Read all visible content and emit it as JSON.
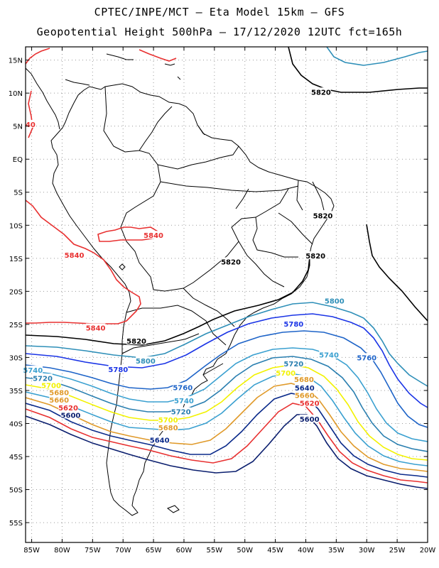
{
  "header": {
    "line1": "CPTEC/INPE/MCT –  Eta Model 15km – GFS",
    "line2": "Geopotential Height 500hPa – 17/12/2020 12UTC fct=165h"
  },
  "map": {
    "lat_labels": [
      "15N",
      "10N",
      "5N",
      "EQ",
      "5S",
      "10S",
      "15S",
      "20S",
      "25S",
      "30S",
      "35S",
      "40S",
      "45S",
      "50S",
      "55S"
    ],
    "lon_labels": [
      "85W",
      "80W",
      "75W",
      "70W",
      "65W",
      "60W",
      "55W",
      "50W",
      "45W",
      "40W",
      "35W",
      "30W",
      "25W",
      "20W"
    ],
    "lon_range": [
      -86,
      -20
    ],
    "lat_range": [
      -58,
      17
    ],
    "contour_colors": {
      "5840": "#e83030",
      "5820": "#000000",
      "5800": "#2e8fb8",
      "5780": "#1a34e6",
      "5760": "#1e64c8",
      "5740": "#3aa0d0",
      "5720": "#2a7fb0",
      "5700": "#f2f200",
      "5680": "#e09a2a",
      "5660": "#e09a2a",
      "5640": "#0a2a8a",
      "5620": "#e83030",
      "5600": "#0a1e6e"
    },
    "contour_labels": [
      {
        "text": "5820",
        "lon": -37.5,
        "lat": 10.2
      },
      {
        "text": "5820",
        "lon": -37.2,
        "lat": -8.5
      },
      {
        "text": "5820",
        "lon": -38.4,
        "lat": -14.6
      },
      {
        "text": "5820",
        "lon": -52.3,
        "lat": -15.5
      },
      {
        "text": "5820",
        "lon": -67.8,
        "lat": -27.5
      },
      {
        "text": "5840",
        "lon": -65.0,
        "lat": -11.5
      },
      {
        "text": "5840",
        "lon": -78.0,
        "lat": -14.5
      },
      {
        "text": "5840",
        "lon": -74.5,
        "lat": -25.5
      },
      {
        "text": "40",
        "lon": -85.2,
        "lat": 5.3
      },
      {
        "text": "5800",
        "lon": -35.3,
        "lat": -21.4
      },
      {
        "text": "5800",
        "lon": -66.3,
        "lat": -30.5
      },
      {
        "text": "5780",
        "lon": -42.0,
        "lat": -24.9
      },
      {
        "text": "5780",
        "lon": -70.8,
        "lat": -31.8
      },
      {
        "text": "5760",
        "lon": -30.0,
        "lat": -30.0
      },
      {
        "text": "5760",
        "lon": -60.2,
        "lat": -34.5
      },
      {
        "text": "5740",
        "lon": -36.2,
        "lat": -29.6
      },
      {
        "text": "5740",
        "lon": -60.0,
        "lat": -36.5
      },
      {
        "text": "5740",
        "lon": -84.8,
        "lat": -31.9
      },
      {
        "text": "5720",
        "lon": -42.0,
        "lat": -30.9
      },
      {
        "text": "5720",
        "lon": -60.5,
        "lat": -38.2
      },
      {
        "text": "5720",
        "lon": -83.2,
        "lat": -33.1
      },
      {
        "text": "5700",
        "lon": -43.3,
        "lat": -32.3
      },
      {
        "text": "5700",
        "lon": -62.6,
        "lat": -39.4
      },
      {
        "text": "5700",
        "lon": -81.8,
        "lat": -34.2
      },
      {
        "text": "5680",
        "lon": -40.3,
        "lat": -33.3
      },
      {
        "text": "5680",
        "lon": -62.6,
        "lat": -40.6
      },
      {
        "text": "5680",
        "lon": -80.5,
        "lat": -35.3
      },
      {
        "text": "5660",
        "lon": -40.2,
        "lat": -35.7
      },
      {
        "text": "5660",
        "lon": -80.5,
        "lat": -36.4
      },
      {
        "text": "5640",
        "lon": -40.2,
        "lat": -34.6
      },
      {
        "text": "5640",
        "lon": -64.0,
        "lat": -42.5
      },
      {
        "text": "5620",
        "lon": -39.4,
        "lat": -36.9
      },
      {
        "text": "5620",
        "lon": -79.0,
        "lat": -37.6
      },
      {
        "text": "5600",
        "lon": -39.4,
        "lat": -39.3
      },
      {
        "text": "5600",
        "lon": -78.6,
        "lat": -38.7
      }
    ]
  }
}
